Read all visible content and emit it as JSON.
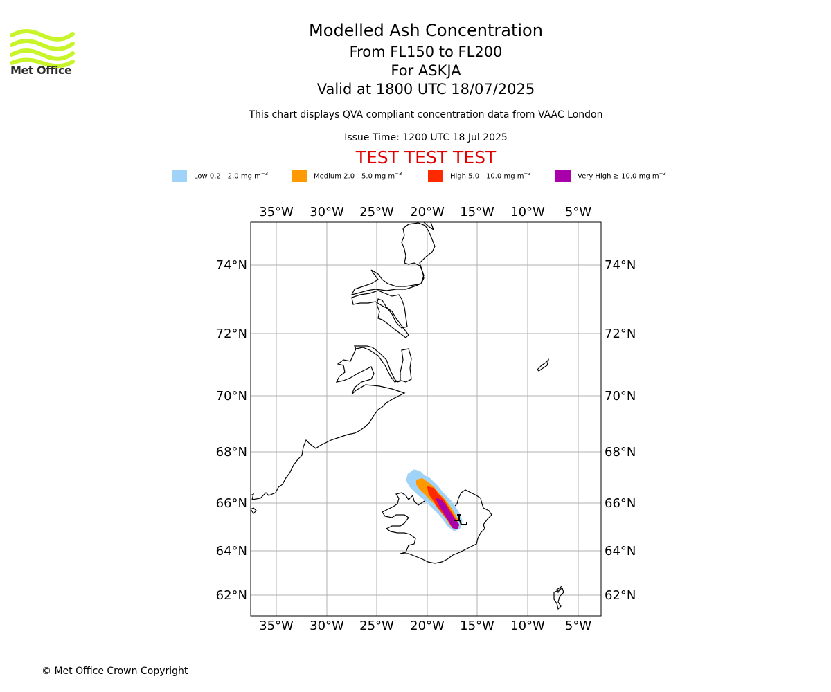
{
  "header": {
    "brand": "Met Office",
    "title": "Modelled Ash Concentration",
    "flight_levels": "From FL150 to FL200",
    "volcano": "For ASKJA",
    "valid": "Valid at 1800 UTC 18/07/2025",
    "note": "This chart displays QVA compliant concentration data from VAAC London",
    "issue_time": "Issue Time: 1200 UTC 18 Jul 2025",
    "test_banner": "TEST TEST TEST"
  },
  "legend": [
    {
      "label": "Low 0.2 - 2.0 mg m",
      "sup": "−3",
      "color": "#a0d3f8"
    },
    {
      "label": "Medium 2.0 - 5.0 mg m",
      "sup": "−3",
      "color": "#ff9900"
    },
    {
      "label": "High 5.0 - 10.0 mg m",
      "sup": "−3",
      "color": "#ff2a00"
    },
    {
      "label": "Very High  ≥  10.0 mg m",
      "sup": "−3",
      "color": "#aa00aa"
    }
  ],
  "map": {
    "lon_labels": [
      "35°W",
      "30°W",
      "25°W",
      "20°W",
      "15°W",
      "10°W",
      "5°W"
    ],
    "lat_labels": [
      "74°N",
      "72°N",
      "70°N",
      "68°N",
      "66°N",
      "64°N",
      "62°N"
    ],
    "volcano_marker": "volcano-icon",
    "colors": {
      "grid": "#b0b0b0",
      "coast": "#000000",
      "low": "#a0d3f8",
      "medium": "#ff9900",
      "high": "#ff2a00",
      "very_high": "#aa00aa"
    }
  },
  "footer": {
    "copyright": "© Met Office Crown Copyright"
  }
}
